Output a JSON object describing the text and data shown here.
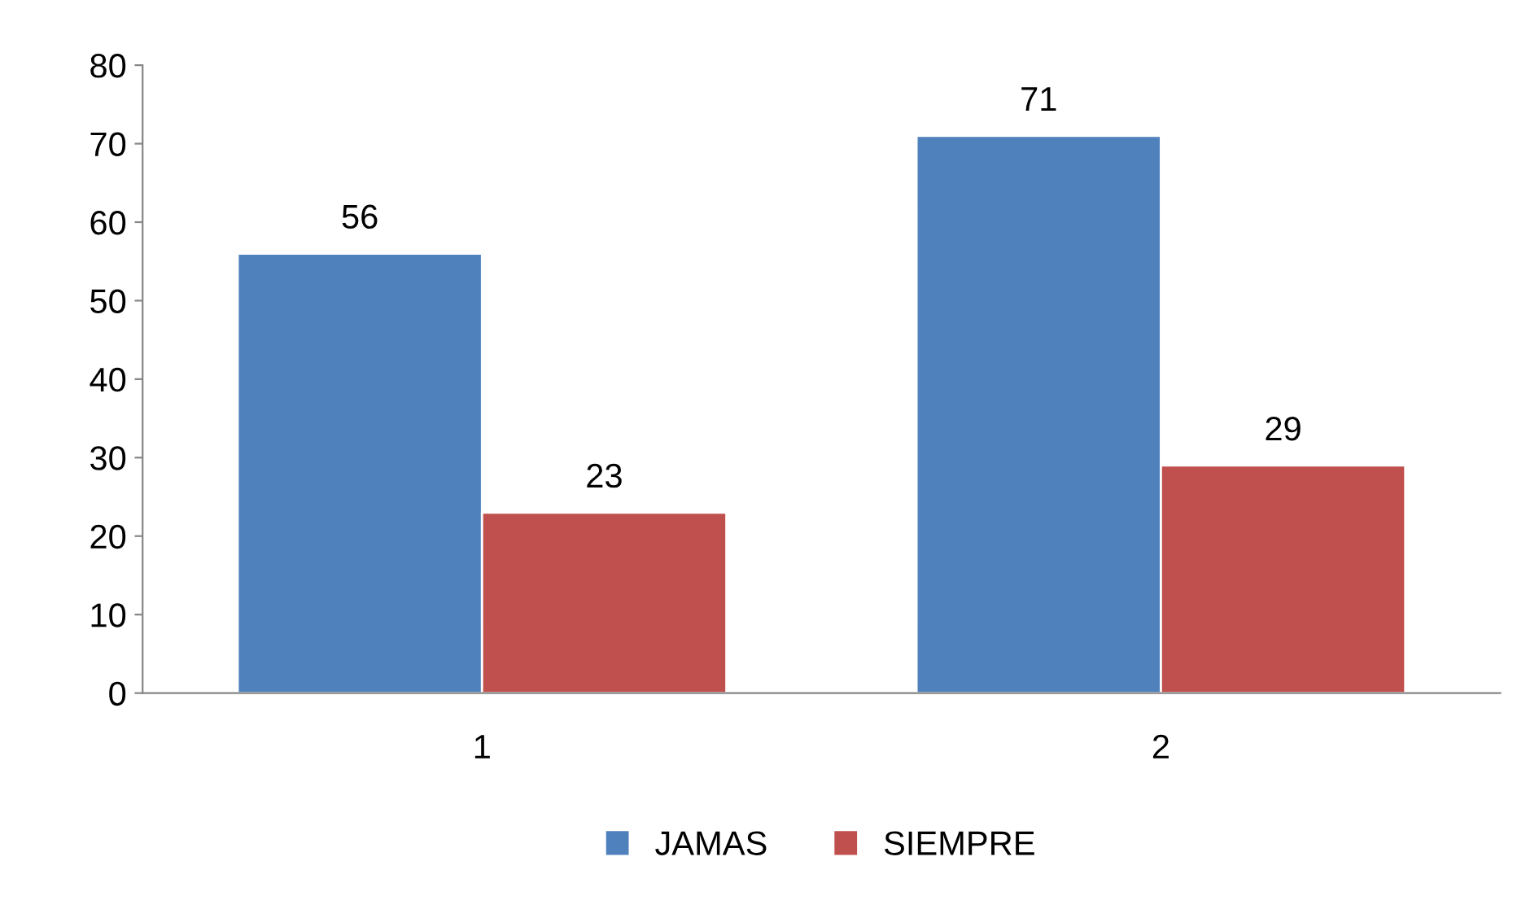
{
  "chart_data": {
    "type": "bar",
    "categories": [
      "1",
      "2"
    ],
    "series": [
      {
        "name": "JAMAS",
        "color": "#4f81bd",
        "values": [
          56,
          71
        ]
      },
      {
        "name": "SIEMPRE",
        "color": "#c0504d",
        "values": [
          23,
          29
        ]
      }
    ],
    "ylim": [
      0,
      80
    ],
    "yticks": [
      0,
      10,
      20,
      30,
      40,
      50,
      60,
      70,
      80
    ],
    "grid": false,
    "legend": "bottom",
    "data_labels": true
  }
}
